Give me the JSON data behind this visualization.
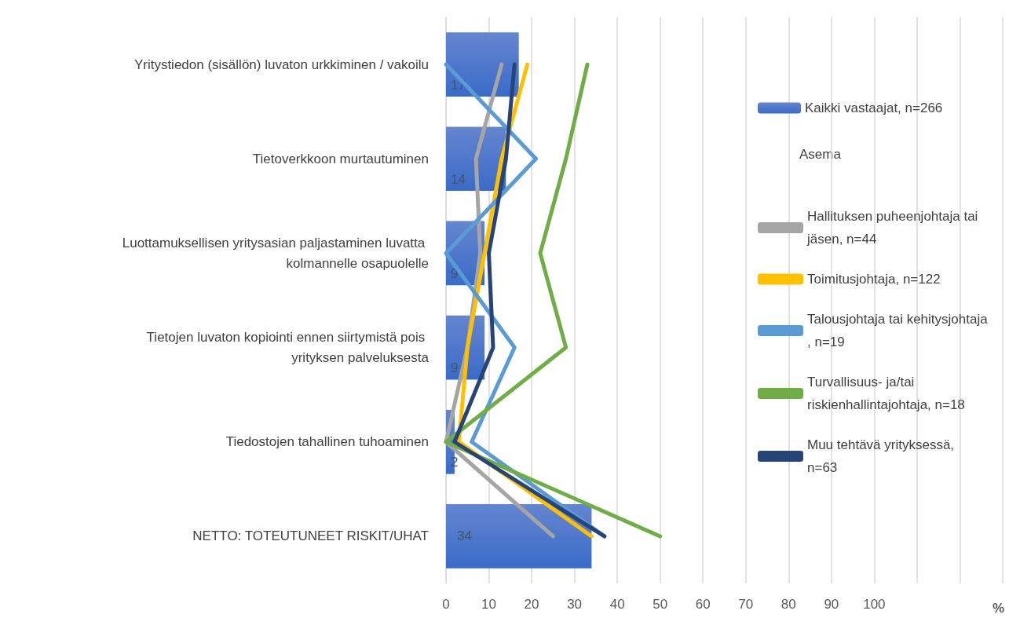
{
  "chart_data": {
    "type": "bar",
    "orientation": "horizontal",
    "xlabel": "%",
    "legend_title": "Asema",
    "legend": "right",
    "grid": "x",
    "marker": "none",
    "categories": [
      "Yritystiedon (sisällön) luvaton urkkiminen / vakoilu",
      "Tietoverkkoon murtautuminen",
      "Luottamuksellisen yritysasian paljastaminen luvatta kolmannelle osapuolelle",
      "Tietojen luvaton kopiointi ennen siirtymistä pois yrityksen palveluksesta",
      "Tiedostojen tahallinen tuhoaminen",
      "NETTO: TOTEUTUNEET RISKIT/UHAT"
    ],
    "xlim": [
      0,
      130
    ],
    "xticks": [
      0,
      10,
      20,
      30,
      40,
      50,
      60,
      70,
      80,
      90,
      100,
      {
        "value": 110,
        "label": null
      },
      {
        "value": 120,
        "label": null
      },
      {
        "value": 130,
        "label": null
      }
    ],
    "series": [
      {
        "name": "Kaikki vastaajat, n=266",
        "color": "#3a6bc8",
        "values": [
          17,
          14,
          9,
          9,
          2,
          34
        ],
        "value_labels": [
          "17",
          "14",
          "9",
          "9",
          "2",
          "34"
        ]
      },
      {
        "name": "Hallituksen puheenjohtaja tai jäsen, n=44",
        "type": "line",
        "color": "#a5a5a5",
        "values": [
          13,
          7,
          8,
          5,
          0,
          25
        ]
      },
      {
        "name": "Toimitusjohtaja, n=122",
        "type": "line",
        "color": "#ffc000",
        "values": [
          19,
          13,
          9,
          5,
          3,
          34
        ]
      },
      {
        "name": "Talousjohtaja tai kehitysjohtaja, n=19",
        "type": "line",
        "color": "#5b9bd5",
        "values": [
          0,
          21,
          0,
          16,
          6,
          37
        ]
      },
      {
        "name": "Turvallisuus- ja/tai riskienhallintajohtaja, n=18",
        "type": "line",
        "color": "#70ad47",
        "values": [
          33,
          28,
          22,
          28,
          0,
          50
        ]
      },
      {
        "name": "Muu tehtävä yrityksessä, n=63",
        "type": "line",
        "color": "#264478",
        "values": [
          16,
          14,
          10,
          11,
          2,
          37
        ]
      }
    ]
  }
}
